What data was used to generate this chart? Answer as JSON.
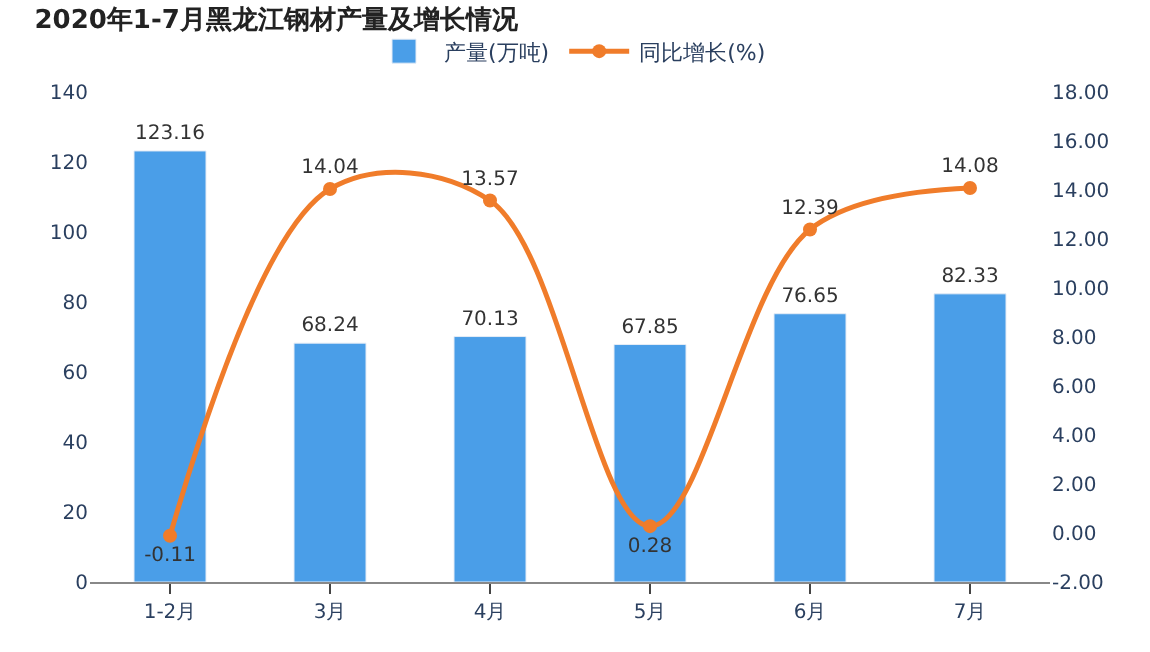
{
  "chart_data": {
    "type": "bar",
    "title": "2020年1-7月黑龙江钢材产量及增长情况",
    "categories": [
      "1-2月",
      "3月",
      "4月",
      "5月",
      "6月",
      "7月"
    ],
    "series": [
      {
        "name": "产量(万吨)",
        "color": "#4a9ee8",
        "values": [
          123.16,
          68.24,
          70.13,
          67.85,
          76.65,
          82.33
        ]
      },
      {
        "name": "同比增长(%)",
        "type": "line",
        "axis": "y2",
        "color": "#f07c2a",
        "values": [
          -0.11,
          14.04,
          13.57,
          0.28,
          12.39,
          14.08
        ]
      }
    ],
    "ylim": [
      0,
      140
    ],
    "yticks": [
      0,
      20,
      40,
      60,
      80,
      100,
      120,
      140
    ],
    "y2lim": [
      -2,
      18
    ],
    "y2ticks": [
      {
        "value": -2,
        "label": "-2.00"
      },
      {
        "value": 0,
        "label": "0.00"
      },
      {
        "value": 2,
        "label": "2.00"
      },
      {
        "value": 4,
        "label": "4.00"
      },
      {
        "value": 6,
        "label": "6.00"
      },
      {
        "value": 8,
        "label": "8.00"
      },
      {
        "value": 10,
        "label": "10.00"
      },
      {
        "value": 12,
        "label": "12.00"
      },
      {
        "value": 14,
        "label": "14.00"
      },
      {
        "value": 16,
        "label": "16.00"
      },
      {
        "value": 18,
        "label": "18.00"
      }
    ],
    "data_labels": true,
    "legend": "top",
    "marker": "circle"
  }
}
